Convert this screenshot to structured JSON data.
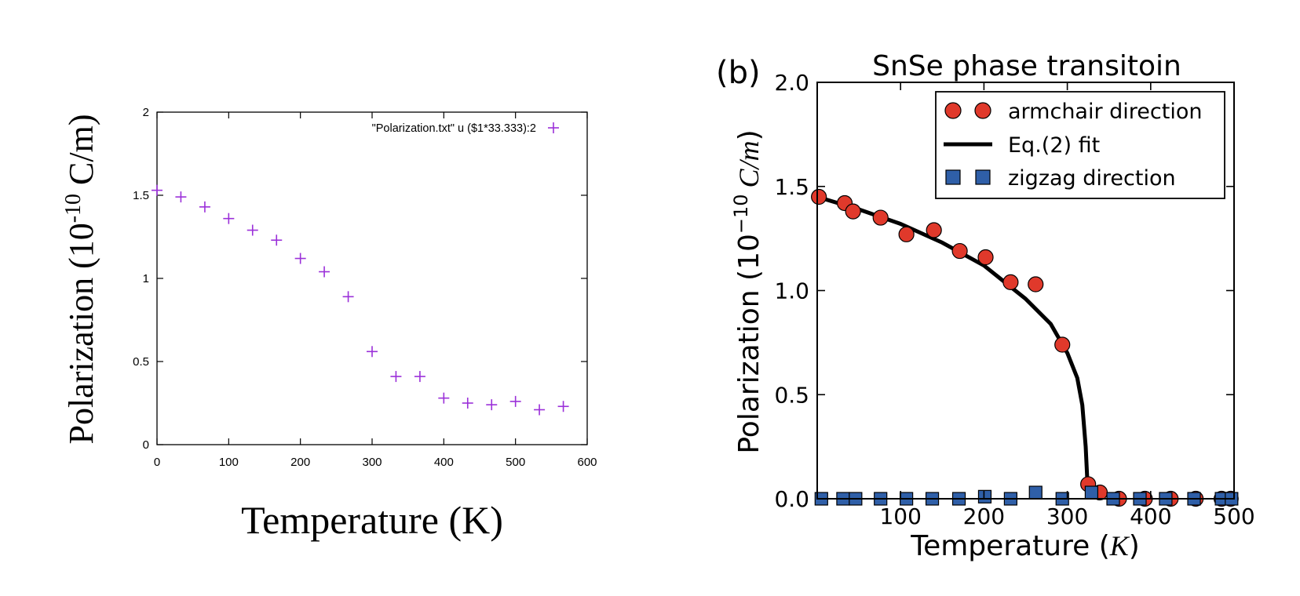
{
  "chart_data": [
    {
      "type": "scatter",
      "xlabel": "Temperature (K)",
      "ylabel_main": "Polarization (10",
      "ylabel_exp": "-10",
      "ylabel_unit": " C/m)",
      "xlim": [
        0,
        600
      ],
      "ylim": [
        0,
        2
      ],
      "xticks": [
        "0",
        "100",
        "200",
        "300",
        "400",
        "500",
        "600"
      ],
      "yticks": [
        "0",
        "0.5",
        "1",
        "1.5",
        "2"
      ],
      "legend_placement": "top-right",
      "series": [
        {
          "name": "\"Polarization.txt\" u ($1*33.333):2",
          "color": "#9b30d9",
          "marker": "plus",
          "x": [
            0,
            33.3,
            66.7,
            100,
            133.3,
            166.7,
            200,
            233.3,
            266.7,
            300,
            333.3,
            366.7,
            400,
            433.3,
            466.7,
            500,
            533.3,
            566.7
          ],
          "y": [
            1.53,
            1.49,
            1.43,
            1.36,
            1.29,
            1.23,
            1.12,
            1.04,
            0.89,
            0.56,
            0.41,
            0.41,
            0.28,
            0.25,
            0.24,
            0.26,
            0.21,
            0.23
          ]
        }
      ]
    },
    {
      "type": "scatter",
      "panel_label": "(b)",
      "title": "SnSe phase transitoin",
      "xlabel_main": "Temperature (",
      "xlabel_var": "K",
      "xlabel_end": ")",
      "ylabel_main": "Polarization (10",
      "ylabel_exp": "−10",
      "ylabel_var": "C/m",
      "ylabel_end": ")",
      "xlim": [
        0,
        500
      ],
      "ylim": [
        0,
        2.0
      ],
      "xticks": [
        "100",
        "200",
        "300",
        "400",
        "500"
      ],
      "yticks": [
        "0.0",
        "0.5",
        "1.0",
        "1.5",
        "2.0"
      ],
      "legend_placement": "top-right",
      "series": [
        {
          "name": "armchair direction",
          "color": "#e0392b",
          "marker": "circle",
          "x": [
            2,
            33,
            43,
            76,
            107,
            140,
            171,
            202,
            232,
            262,
            294,
            325,
            339,
            362,
            393,
            424,
            454,
            485,
            496
          ],
          "y": [
            1.45,
            1.42,
            1.38,
            1.35,
            1.27,
            1.29,
            1.19,
            1.16,
            1.04,
            1.03,
            0.74,
            0.07,
            0.03,
            0.0,
            0.0,
            0.0,
            0.0,
            0.0,
            0.0
          ]
        },
        {
          "name": "Eq.(2) fit",
          "color": "#000000",
          "marker": "line",
          "x": [
            0,
            50,
            100,
            150,
            200,
            250,
            280,
            300,
            312,
            318,
            322,
            325
          ],
          "y": [
            1.45,
            1.39,
            1.32,
            1.23,
            1.12,
            0.96,
            0.84,
            0.7,
            0.58,
            0.45,
            0.25,
            0.0
          ]
        },
        {
          "name": "zigzag direction",
          "color": "#2f5fa8",
          "marker": "square",
          "x": [
            5,
            31,
            46,
            76,
            107,
            138,
            170,
            201,
            232,
            262,
            294,
            329,
            355,
            387,
            418,
            452,
            485,
            497
          ],
          "y": [
            0.0,
            0.0,
            0.0,
            0.0,
            0.0,
            0.0,
            0.0,
            0.01,
            0.0,
            0.03,
            0.0,
            0.03,
            0.0,
            0.0,
            0.0,
            0.0,
            0.0,
            0.0
          ]
        }
      ]
    }
  ]
}
